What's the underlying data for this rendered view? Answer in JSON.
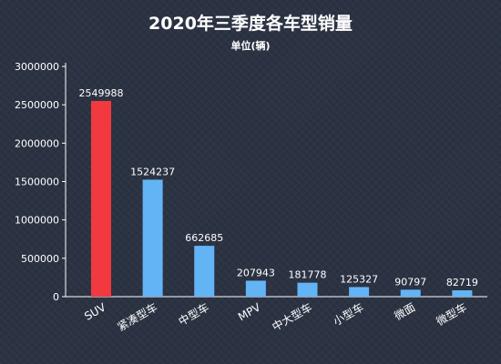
{
  "chart_data": {
    "type": "bar",
    "title": "2020年三季度各车型销量",
    "subtitle": "单位(辆)",
    "categories": [
      "SUV",
      "紧凑型车",
      "中型车",
      "MPV",
      "中大型车",
      "小型车",
      "微面",
      "微型车"
    ],
    "values": [
      2549988,
      1524237,
      662685,
      207943,
      181778,
      125327,
      90797,
      82719
    ],
    "ylim": [
      0,
      3000000
    ],
    "yticks": [
      0,
      500000,
      1000000,
      1500000,
      2000000,
      2500000,
      3000000
    ],
    "grid": false,
    "legend": "none",
    "colors": {
      "highlight": "#f2393f",
      "bar": "#63b4f5",
      "axis": "#ffffff",
      "background": "#2b3343"
    }
  }
}
